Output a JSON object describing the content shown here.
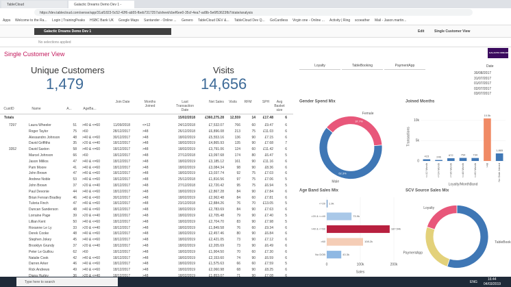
{
  "browser": {
    "tabs": [
      "TableCloud",
      "Galactic Dreams Demo Dev 1 -"
    ],
    "url": "https://dev.tablecloud.com/sense/app/31af1823-5c52-42f6-ab55-fbeb7317257a/sheet/cbef6ee0-35cf-4ea7-ad9b-5e6f53623fb7/state/analysis",
    "bookmarks": [
      "Apps",
      "Welcome to the Ra...",
      "Login | TrainingPeaks",
      "HSBC Bank UK",
      "Google Maps",
      "Santander - Online ...",
      "Genero",
      "TableCloud DEV &...",
      "TableCloud Dev Q...",
      "GoCardless",
      "Virgin one - Online ...",
      "Activity | Ring",
      "scoeather",
      "Mail - Jason.martin..."
    ]
  },
  "app": {
    "title": "Galactic Dreams Demo Dev 1",
    "edit": "Edit",
    "sheet": "Single Customer View",
    "selections": "No selections applied",
    "logo": "GALACTIC DREAMS"
  },
  "sheet_title": "Single Customer View",
  "kpis": [
    {
      "label": "Unique Customers",
      "value": "1,479"
    },
    {
      "label": "Visits",
      "value": "14,656"
    }
  ],
  "buttons": [
    "Loyalty",
    "TableBooking",
    "PaymentApp"
  ],
  "date_filter": {
    "title": "Date",
    "items": [
      "30/08/2017",
      "31/07/2017",
      "01/07/2017",
      "02/07/2017",
      "03/07/2017"
    ]
  },
  "table": {
    "headers": [
      "CustID",
      "Name",
      "A...",
      "AgeBa...",
      "Join Date",
      "Months Joined",
      "Last Transaction Date",
      "Net Sales",
      "Visits",
      "RFM",
      "SPH",
      "Avg Basket size"
    ],
    "totals": {
      "label": "Totals",
      "last": "15/02/2018",
      "net": "£360,275.28",
      "visits": "12,559",
      "rfm": "14",
      "sph": "£17.48",
      "avg": "6"
    },
    "rows": [
      [
        "7297",
        "Laura Wheeler",
        "51",
        ">40 & <=60",
        "11/09/2018",
        "<=12",
        "24/12/2018",
        "£7,532.07",
        "766",
        "60",
        "£9.47",
        "6"
      ],
      [
        null,
        "Roger Taylor",
        "75",
        ">60",
        "28/12/2017",
        ">48",
        "26/12/2018",
        "£6,896.08",
        "213",
        "75",
        "£11.03",
        "6"
      ],
      [
        null,
        "Alessandro Johnson",
        "48",
        ">40 & <=60",
        "30/12/2017",
        ">48",
        "18/02/2019",
        "£5,553.16",
        "136",
        "90",
        "£7.15",
        "6"
      ],
      [
        null,
        "David Griffiths",
        "35",
        ">20 & <=40",
        "18/12/2017",
        ">48",
        "18/02/2019",
        "£4,865.93",
        "135",
        "90",
        "£7.68",
        "7"
      ],
      [
        "3352",
        "David Saxton",
        "58",
        ">40 & <=60",
        "18/12/2017",
        ">48",
        "18/02/2019",
        "£3,791.06",
        "124",
        "60",
        "£11.42",
        "6"
      ],
      [
        null,
        "Marcel Johnson",
        "66",
        ">60",
        "18/12/2017",
        ">48",
        "27/12/2018",
        "£3,097.68",
        "174",
        "80",
        "£6.47",
        "5"
      ],
      [
        null,
        "Jason Millios",
        "47",
        ">40 & <=60",
        "18/12/2017",
        ">48",
        "18/02/2019",
        "£3,185.12",
        "161",
        "90",
        "£11.16",
        "6"
      ],
      [
        null,
        "Pam Moore",
        "41",
        ">40 & <=60",
        "18/12/2017",
        ">48",
        "18/02/2019",
        "£3,084.34",
        "98",
        "90",
        "£8.36",
        "6"
      ],
      [
        null,
        "John Brown",
        "47",
        ">40 & <=60",
        "18/12/2017",
        ">48",
        "18/02/2019",
        "£3,037.74",
        "92",
        "75",
        "£7.03",
        "6"
      ],
      [
        null,
        "Andrew Noble",
        "53",
        ">40 & <=60",
        "18/12/2017",
        ">48",
        "25/12/2018",
        "£1,816.56",
        "97",
        "75",
        "£7.06",
        "5"
      ],
      [
        null,
        "John Brown",
        "37",
        ">20 & <=40",
        "18/12/2017",
        ">48",
        "27/12/2018",
        "£2,720.42",
        "95",
        "75",
        "£6.94",
        "5"
      ],
      [
        null,
        "Paul Devonie",
        "44",
        ">40 & <=60",
        "18/12/2017",
        ">48",
        "18/02/2019",
        "£2,867.28",
        "84",
        "90",
        "£7.84",
        "6"
      ],
      [
        null,
        "Brian Fenran Bradley",
        "46",
        ">40 & <=60",
        "30/12/2017",
        ">48",
        "18/02/2019",
        "£2,962.48",
        "84",
        "60",
        "£7.81",
        "6"
      ],
      [
        null,
        "Tuloria Finch",
        "47",
        ">40 & <=60",
        "18/12/2017",
        ">48",
        "23/12/2018",
        "£2,884.26",
        "76",
        "70",
        "£13.05",
        "5"
      ],
      [
        null,
        "Duncan Sanderson",
        "48",
        ">40 & <=60",
        "18/12/2017",
        ">48",
        "18/02/2019",
        "£2,783.69",
        "84",
        "90",
        "£7.63",
        "6"
      ],
      [
        null,
        "Lorraine Page",
        "39",
        ">20 & <=40",
        "18/12/2017",
        ">48",
        "18/02/2019",
        "£2,705.48",
        "79",
        "90",
        "£7.40",
        "5"
      ],
      [
        null,
        "Lillian Kent",
        "50",
        ">40 & <=60",
        "18/12/2017",
        ">48",
        "18/02/2019",
        "£2,704.70",
        "83",
        "90",
        "£7.98",
        "5"
      ],
      [
        null,
        "Roxanne Le Ly",
        "33",
        ">20 & <=40",
        "18/12/2017",
        ">48",
        "18/02/2019",
        "£1,849.58",
        "76",
        "60",
        "£9.34",
        "6"
      ],
      [
        null,
        "Derek Cooke",
        "48",
        ">40 & <=60",
        "18/12/2017",
        ">48",
        "18/02/2019",
        "£2,457.46",
        "80",
        "90",
        "£6.84",
        "6"
      ],
      [
        null,
        "Stephen Jokey",
        "45",
        ">40 & <=60",
        "18/12/2017",
        ">48",
        "18/02/2019",
        "£2,421.05",
        "73",
        "90",
        "£7.12",
        "6"
      ],
      [
        null,
        "Brooklyn Grundy",
        "37",
        ">20 & <=40",
        "18/12/2017",
        ">48",
        "18/02/2019",
        "£2,205.69",
        "73",
        "90",
        "£6.49",
        "6"
      ],
      [
        null,
        "Peter Le Guillou",
        "62",
        ">60",
        "18/12/2017",
        ">48",
        "18/02/2019",
        "£1,904.50",
        "70",
        "60",
        "£7.30",
        "6"
      ],
      [
        null,
        "Natalie Cook",
        "42",
        ">40 & <=60",
        "18/12/2017",
        ">48",
        "18/02/2019",
        "£2,153.60",
        "74",
        "90",
        "£6.59",
        "6"
      ],
      [
        null,
        "Darren Arker",
        "46",
        ">40 & <=60",
        "18/12/2017",
        ">48",
        "18/02/2019",
        "£1,575.63",
        "66",
        "60",
        "£7.59",
        "5"
      ],
      [
        null,
        "Rick Andrews",
        "49",
        ">40 & <=60",
        "18/12/2017",
        ">48",
        "18/02/2019",
        "£2,060.98",
        "68",
        "90",
        "£8.25",
        "6"
      ],
      [
        null,
        "Diana Hurley",
        "36",
        ">20 & <=40",
        "18/12/2017",
        ">48",
        "18/02/2019",
        "£1,853.07",
        "71",
        "90",
        "£7.08",
        "6"
      ]
    ]
  },
  "charts": [
    {
      "type": "donut",
      "title": "Gender Spend Mix",
      "categories": [
        "Female",
        "Male"
      ],
      "values": [
        37.7,
        62.3
      ],
      "value_labels": [
        "37.7%",
        "62.3%"
      ],
      "colors": [
        "#e8577a",
        "#3f77b5"
      ]
    },
    {
      "type": "bar",
      "title": "Joined Months",
      "x_label": "Loyalty/MonthBand",
      "y_label": "Transactions",
      "categories": [
        "<=12 Month",
        "<=24 Month",
        "<=36 Month",
        "<=48 Month",
        "<=60 Month",
        ">48",
        "No Date Joined"
      ],
      "values": [
        415,
        246,
        672,
        754,
        734,
        10500,
        1865
      ],
      "value_labels": [
        "415",
        "246",
        "672",
        "754",
        "734",
        "10.5k",
        "1,865"
      ],
      "colors": [
        "#3f77b5",
        "#3f77b5",
        "#3f77b5",
        "#3f77b5",
        "#3f77b5",
        "#f08a65",
        "#3f77b5"
      ],
      "ylim": [
        0,
        12000
      ],
      "yticks": [
        0,
        {
          "value": 5000,
          "label": "5k"
        },
        {
          "value": 10000,
          "label": "10k"
        }
      ]
    },
    {
      "type": "hbar",
      "title": "Age Band Sales Mix",
      "x_label": "Sales",
      "categories": [
        "<=20",
        ">20 & <=40",
        ">40 & <=60",
        ">60",
        "No DOB"
      ],
      "values": [
        1900,
        73900,
        187540,
        108200,
        43300
      ],
      "value_labels": [
        "1.9k",
        "73.9k",
        "187.54k",
        "108.2k",
        "43.3k"
      ],
      "colors": [
        "#3f77b5",
        "#a9c8e8",
        "#b8203f",
        "#f5cdb6",
        "#8fb8e3"
      ],
      "xlim": [
        0,
        200000
      ],
      "xticks": [
        0,
        {
          "value": 100000,
          "label": "100k"
        },
        {
          "value": 200000,
          "label": "200k"
        }
      ]
    },
    {
      "type": "donut",
      "title": "SCV Source Sales Mix",
      "categories": [
        "TableBooking",
        "PaymentApp",
        "Loyalty"
      ],
      "values": [
        55,
        25,
        20
      ],
      "colors": [
        "#3f77b5",
        "#e3d17a",
        "#e8577a"
      ]
    }
  ],
  "taskbar": {
    "search": "Type here to search",
    "lang": "ENG",
    "time": "16:44",
    "date": "04/03/2019"
  }
}
